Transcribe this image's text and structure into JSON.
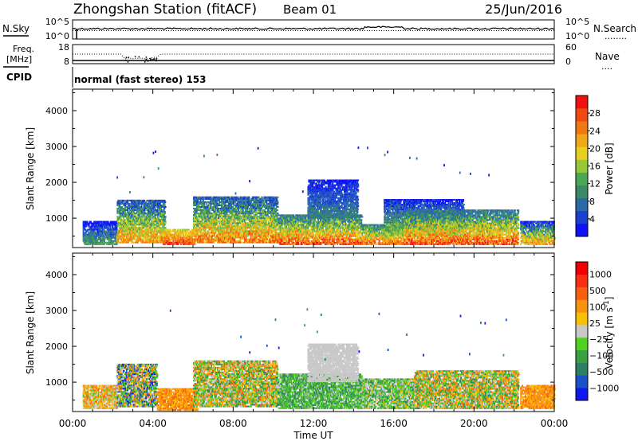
{
  "header": {
    "station": "Zhongshan Station (fitACF)",
    "beam": "Beam 01",
    "date": "25/Jun/2016"
  },
  "noise_panel": {
    "left_label": "N.Sky",
    "left_ticks": [
      "10^5",
      "10^0"
    ],
    "right_ticks": [
      "10^5",
      "10^0"
    ],
    "right_label": "N.Search",
    "right_legend": "........"
  },
  "freq_panel": {
    "left_label_1": "Freq.",
    "left_label_2": "[MHz]",
    "left_ticks": [
      "18",
      "8"
    ],
    "right_ticks": [
      "60",
      "0"
    ],
    "right_label": "Nave",
    "right_legend": "...."
  },
  "cpid": {
    "label": "CPID",
    "text": "normal (fast stereo) 153"
  },
  "chart_data": [
    {
      "type": "heatmap",
      "name": "power",
      "ylabel": "Slant Range [km]",
      "ylim": [
        180,
        4600
      ],
      "yticks": [
        1000,
        2000,
        3000,
        4000
      ],
      "colorbar": {
        "label": "Power [dB]",
        "range": [
          0,
          32
        ],
        "ticks": [
          "4",
          "8",
          "12",
          "16",
          "20",
          "24",
          "28"
        ],
        "colors": [
          "#1010ff",
          "#1a40d0",
          "#2a6aa8",
          "#3a8a6a",
          "#4aa852",
          "#98c838",
          "#e8d020",
          "#f0a818",
          "#f07812",
          "#f04a10",
          "#f01010"
        ]
      },
      "blobs": [
        {
          "t0": 0.5,
          "t1": 2.2,
          "r0": 250,
          "r1": 900,
          "pmin": 0,
          "pmax": 14
        },
        {
          "t0": 2.2,
          "t1": 4.6,
          "r0": 300,
          "r1": 1500,
          "pmin": 4,
          "pmax": 26
        },
        {
          "t0": 4.4,
          "t1": 6.1,
          "r0": 250,
          "r1": 700,
          "pmin": 16,
          "pmax": 30
        },
        {
          "t0": 6.0,
          "t1": 10.2,
          "r0": 300,
          "r1": 1600,
          "pmin": 4,
          "pmax": 28
        },
        {
          "t0": 10.2,
          "t1": 14.4,
          "r0": 250,
          "r1": 1100,
          "pmin": 6,
          "pmax": 30
        },
        {
          "t0": 11.7,
          "t1": 14.2,
          "r0": 1000,
          "r1": 2050,
          "pmin": 2,
          "pmax": 10
        },
        {
          "t0": 14.4,
          "t1": 16.5,
          "r0": 250,
          "r1": 800,
          "pmin": 8,
          "pmax": 28
        },
        {
          "t0": 15.5,
          "t1": 19.5,
          "r0": 500,
          "r1": 1500,
          "pmin": 2,
          "pmax": 18
        },
        {
          "t0": 16.5,
          "t1": 22.2,
          "r0": 250,
          "r1": 1200,
          "pmin": 6,
          "pmax": 30
        },
        {
          "t0": 22.3,
          "t1": 24.0,
          "r0": 250,
          "r1": 900,
          "pmin": 2,
          "pmax": 26
        }
      ]
    },
    {
      "type": "heatmap",
      "name": "velocity",
      "ylabel": "Slant Range [km]",
      "ylim": [
        180,
        4600
      ],
      "yticks": [
        1000,
        2000,
        3000,
        4000
      ],
      "colorbar": {
        "label": "Velocity [m s^-1]",
        "ticks": [
          "1000",
          "500",
          "100",
          "25",
          "−25",
          "−100",
          "−500",
          "−1000"
        ],
        "colors": [
          "#1018f0",
          "#1a50c8",
          "#2a8060",
          "#3aa040",
          "#50d020",
          "#c8c8c8",
          "#f8c000",
          "#f89010",
          "#f86010",
          "#f83010",
          "#f00000"
        ]
      },
      "blobs": [
        {
          "t0": 0.5,
          "t1": 2.2,
          "r0": 250,
          "r1": 900,
          "vmin": 4,
          "vmax": 8
        },
        {
          "t0": 2.2,
          "t1": 4.2,
          "r0": 300,
          "r1": 1500,
          "vmin": 0,
          "vmax": 8
        },
        {
          "t0": 4.2,
          "t1": 6.2,
          "r0": 200,
          "r1": 800,
          "vmin": 6,
          "vmax": 8
        },
        {
          "t0": 6.0,
          "t1": 10.2,
          "r0": 300,
          "r1": 1600,
          "vmin": 2,
          "vmax": 8
        },
        {
          "t0": 10.2,
          "t1": 14.4,
          "r0": 250,
          "r1": 1200,
          "vmin": 2,
          "vmax": 5
        },
        {
          "t0": 11.7,
          "t1": 14.2,
          "r0": 1000,
          "r1": 2050,
          "vmin": 5,
          "vmax": 5
        },
        {
          "t0": 14.4,
          "t1": 17.0,
          "r0": 250,
          "r1": 1100,
          "vmin": 2,
          "vmax": 6
        },
        {
          "t0": 17.0,
          "t1": 22.2,
          "r0": 250,
          "r1": 1300,
          "vmin": 2,
          "vmax": 8
        },
        {
          "t0": 22.3,
          "t1": 24.0,
          "r0": 250,
          "r1": 900,
          "vmin": 6,
          "vmax": 8
        }
      ]
    }
  ],
  "x_axis": {
    "ticks": [
      "00:00",
      "04:00",
      "08:00",
      "12:00",
      "16:00",
      "20:00",
      "00:00"
    ],
    "label": "Time UT",
    "range_hours": [
      0,
      24
    ]
  }
}
